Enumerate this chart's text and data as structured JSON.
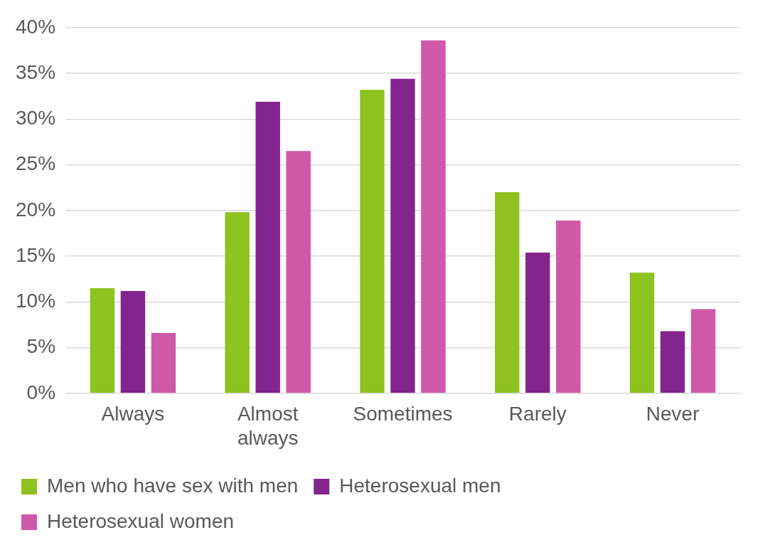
{
  "chart_data": {
    "type": "bar",
    "categories": [
      "Always",
      "Almost always",
      "Sometimes",
      "Rarely",
      "Never"
    ],
    "series": [
      {
        "name": "Men who have sex with men",
        "color": "#8dc21f",
        "values": [
          11.5,
          19.8,
          33.2,
          22.0,
          13.2
        ]
      },
      {
        "name": "Heterosexual men",
        "color": "#84248f",
        "values": [
          11.2,
          31.9,
          34.4,
          15.4,
          6.8
        ]
      },
      {
        "name": "Heterosexual women",
        "color": "#cf58a8",
        "values": [
          6.6,
          26.5,
          38.6,
          18.9,
          9.2
        ]
      }
    ],
    "ylim": [
      0,
      40
    ],
    "yticks": [
      {
        "value": 0,
        "label": "0%"
      },
      {
        "value": 5,
        "label": "5%"
      },
      {
        "value": 10,
        "label": "10%"
      },
      {
        "value": 15,
        "label": "15%"
      },
      {
        "value": 20,
        "label": "20%"
      },
      {
        "value": 25,
        "label": "25%"
      },
      {
        "value": 30,
        "label": "30%"
      },
      {
        "value": 35,
        "label": "35%"
      },
      {
        "value": 40,
        "label": "40%"
      }
    ],
    "grid": "y",
    "legend": "bottom"
  }
}
